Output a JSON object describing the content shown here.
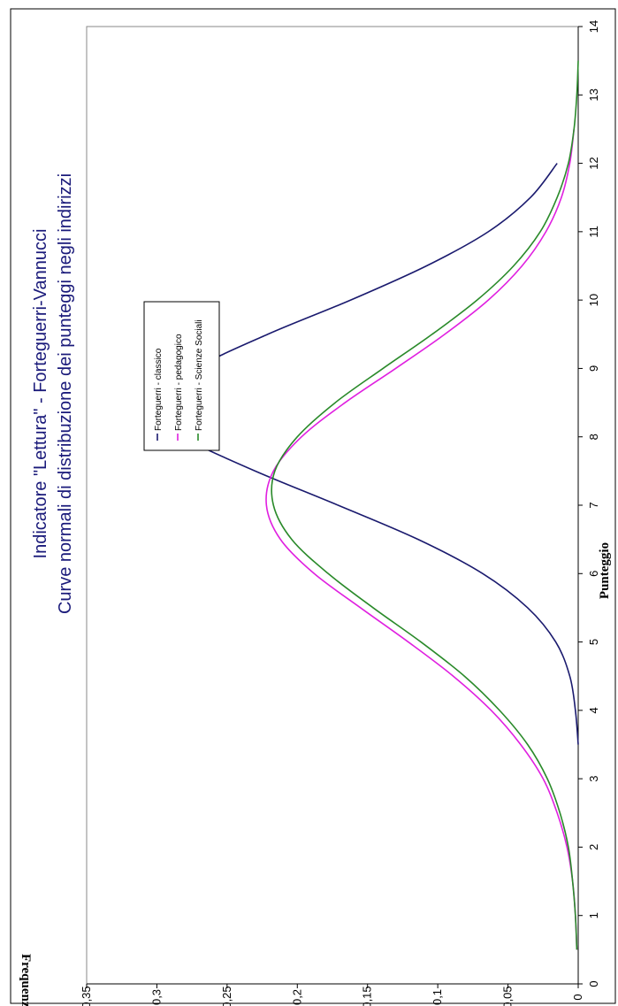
{
  "chart_data": {
    "type": "line",
    "title": "Indicatore \"Lettura\" - Forteguerri-Vannucci",
    "subtitle": "Curve normali di distribuzione dei punteggi negli indirizzi",
    "xlabel": "Punteggio",
    "ylabel": "Frequenza",
    "xlim": [
      0,
      14
    ],
    "ylim": [
      0,
      0.35
    ],
    "x_ticks": [
      "0",
      "1",
      "2",
      "3",
      "4",
      "5",
      "6",
      "7",
      "8",
      "9",
      "10",
      "11",
      "12",
      "13",
      "14"
    ],
    "y_ticks": [
      "0",
      "0,05",
      "0,1",
      "0,15",
      "0,2",
      "0,25",
      "0,3",
      "0,35"
    ],
    "grid": false,
    "orientation": "rotated 90° (chart printed sideways)",
    "legend_position": "top-left",
    "series": [
      {
        "name": "Forteguerri - classico",
        "color": "#1a1a6e",
        "mean": 8.3,
        "peak": 0.305,
        "x": [
          3.5,
          4,
          4.5,
          5,
          5.5,
          6,
          6.5,
          7,
          7.5,
          8,
          8.3,
          8.5,
          9,
          9.5,
          10,
          10.5,
          11,
          11.5,
          12
        ],
        "y": [
          0.0,
          0.002,
          0.006,
          0.016,
          0.036,
          0.068,
          0.114,
          0.171,
          0.23,
          0.283,
          0.305,
          0.301,
          0.272,
          0.221,
          0.162,
          0.108,
          0.064,
          0.034,
          0.015
        ]
      },
      {
        "name": "Forteguerri - pedagogico",
        "color": "#e020e0",
        "mean": 7.1,
        "peak": 0.222,
        "x": [
          0.5,
          1,
          1.5,
          2,
          2.5,
          3,
          3.5,
          4,
          4.5,
          5,
          5.5,
          6,
          6.5,
          7,
          7.5,
          8,
          8.5,
          9,
          9.5,
          10,
          10.5,
          11,
          11.5,
          12,
          12.5
        ],
        "y": [
          0.001,
          0.002,
          0.004,
          0.008,
          0.015,
          0.025,
          0.041,
          0.062,
          0.089,
          0.121,
          0.155,
          0.188,
          0.212,
          0.222,
          0.217,
          0.197,
          0.166,
          0.13,
          0.095,
          0.064,
          0.04,
          0.023,
          0.012,
          0.006,
          0.003
        ]
      },
      {
        "name": "Forteguerri - Scienze Sociali",
        "color": "#2a8a2a",
        "mean": 7.25,
        "peak": 0.217,
        "x": [
          0.5,
          1,
          1.5,
          2,
          2.5,
          3,
          3.5,
          4,
          4.5,
          5,
          5.5,
          6,
          6.5,
          7,
          7.5,
          8,
          8.5,
          9,
          9.5,
          10,
          10.5,
          11,
          11.5,
          12,
          12.5,
          13,
          13.5
        ],
        "y": [
          0.001,
          0.002,
          0.004,
          0.007,
          0.013,
          0.022,
          0.036,
          0.056,
          0.081,
          0.112,
          0.146,
          0.178,
          0.204,
          0.217,
          0.216,
          0.2,
          0.173,
          0.139,
          0.104,
          0.072,
          0.046,
          0.027,
          0.015,
          0.007,
          0.003,
          0.001,
          0.0
        ]
      }
    ]
  }
}
